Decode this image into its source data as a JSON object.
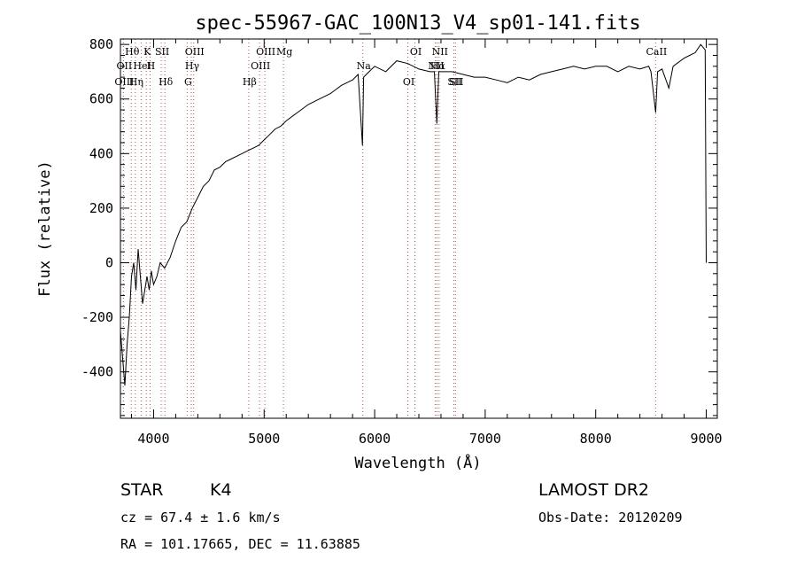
{
  "chart_data": {
    "type": "line",
    "title": "spec-55967-GAC_100N13_V4_sp01-141.fits",
    "xlabel": "Wavelength (Å)",
    "ylabel": "Flux (relative)",
    "xlim": [
      3700,
      9100
    ],
    "ylim": [
      -570,
      820
    ],
    "x_ticks": [
      4000,
      5000,
      6000,
      7000,
      8000,
      9000
    ],
    "y_ticks": [
      -400,
      -200,
      0,
      200,
      400,
      600,
      800
    ],
    "grid": false,
    "series": [
      {
        "x": [
          3700,
          3720,
          3740,
          3760,
          3780,
          3800,
          3820,
          3840,
          3860,
          3880,
          3900,
          3920,
          3940,
          3960,
          3980,
          4000,
          4030,
          4060,
          4100,
          4150,
          4200,
          4250,
          4300,
          4350,
          4400,
          4450,
          4500,
          4550,
          4600,
          4650,
          4700,
          4750,
          4800,
          4850,
          4900,
          4950,
          5000,
          5050,
          5100,
          5150,
          5200,
          5300,
          5400,
          5500,
          5600,
          5700,
          5800,
          5850,
          5890,
          5900,
          5950,
          6000,
          6100,
          6200,
          6300,
          6400,
          6500,
          6540,
          6563,
          6580,
          6600,
          6700,
          6800,
          6900,
          7000,
          7100,
          7200,
          7300,
          7400,
          7500,
          7600,
          7700,
          7800,
          7900,
          8000,
          8100,
          8200,
          8300,
          8400,
          8480,
          8500,
          8542,
          8560,
          8600,
          8662,
          8700,
          8800,
          8850,
          8900,
          8950,
          8990,
          9000
        ],
        "y": [
          -250,
          -350,
          -450,
          -300,
          -200,
          -50,
          0,
          -100,
          50,
          -50,
          -150,
          -100,
          -50,
          -100,
          -30,
          -80,
          -50,
          0,
          -20,
          20,
          80,
          130,
          150,
          200,
          240,
          280,
          300,
          340,
          350,
          370,
          380,
          390,
          400,
          410,
          420,
          430,
          450,
          470,
          490,
          500,
          520,
          550,
          580,
          600,
          620,
          650,
          670,
          690,
          430,
          680,
          700,
          720,
          700,
          740,
          730,
          710,
          700,
          700,
          510,
          700,
          700,
          700,
          690,
          680,
          680,
          670,
          660,
          680,
          670,
          690,
          700,
          710,
          720,
          710,
          720,
          720,
          700,
          720,
          710,
          720,
          700,
          550,
          700,
          710,
          640,
          720,
          750,
          760,
          770,
          800,
          780,
          0
        ]
      }
    ],
    "emission_lines": [
      {
        "name": "Hθ",
        "x": 3798
      },
      {
        "name": "OII",
        "x": 3727
      },
      {
        "name": "OIII",
        "x": 3727
      },
      {
        "name": "K",
        "x": 3934
      },
      {
        "name": "HeI",
        "x": 3889
      },
      {
        "name": "Hη",
        "x": 3835
      },
      {
        "name": "SII",
        "x": 4069
      },
      {
        "name": "H",
        "x": 3968
      },
      {
        "name": "Hδ",
        "x": 4102
      },
      {
        "name": "OIII",
        "x": 4363
      },
      {
        "name": "Hγ",
        "x": 4341
      },
      {
        "name": "G",
        "x": 4304
      },
      {
        "name": "OIII",
        "x": 5007
      },
      {
        "name": "OIII",
        "x": 4959
      },
      {
        "name": "Hβ",
        "x": 4861
      },
      {
        "name": "Mg",
        "x": 5175
      },
      {
        "name": "Na",
        "x": 5893
      },
      {
        "name": "OI",
        "x": 6300
      },
      {
        "name": "OI",
        "x": 6364
      },
      {
        "name": "Hα",
        "x": 6563
      },
      {
        "name": "SII",
        "x": 6716
      },
      {
        "name": "NII",
        "x": 6583
      },
      {
        "name": "NII",
        "x": 6548
      },
      {
        "name": "SII",
        "x": 6731
      },
      {
        "name": "CaII",
        "x": 8542
      }
    ]
  },
  "info": {
    "class": "STAR",
    "subclass": "K4",
    "survey": "LAMOST DR2",
    "cz": "cz = 67.4 ± 1.6 km/s",
    "obs_date": "Obs-Date: 20120209",
    "radec": "RA = 101.17665, DEC =  11.63885"
  }
}
